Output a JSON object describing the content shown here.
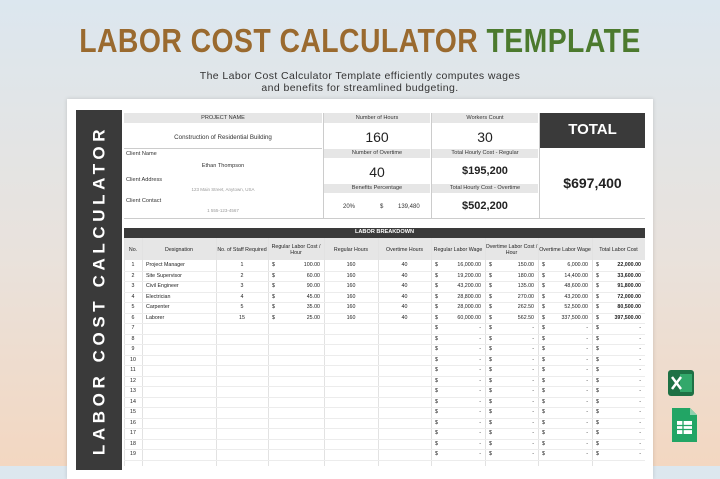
{
  "header": {
    "title_main": "LABOR COST CALCULATOR",
    "title_accent": "TEMPLATE",
    "subtitle_line1": "The Labor Cost Calculator Template efficiently computes wages",
    "subtitle_line2": "and benefits for streamlined budgeting."
  },
  "sheet": {
    "sidebar": "LABOR COST CALCULATOR",
    "info": {
      "project_name_label": "PROJECT NAME",
      "project_name": "Construction of Residential Building",
      "client_name_label": "Client Name",
      "client_name": "Ethan Thompson",
      "client_address_label": "Client Address",
      "client_address": "123 Main Street, Anytown, USA",
      "client_contact_label": "Client Contact",
      "client_contact": "1 555-123-4567",
      "hours_label": "Number of Hours",
      "hours": "160",
      "workers_label": "Workers Count",
      "workers": "30",
      "overtime_label": "Number of Overtime",
      "overtime": "40",
      "regular_cost_label": "Total Hourly Cost - Regular",
      "regular_cost": "$195,200",
      "benefits_label": "Benefits Percentage",
      "benefits_percent": "20%",
      "benefits_currency": "$",
      "benefits_amount": "139,480",
      "overtime_cost_label": "Total Hourly Cost - Overtime",
      "overtime_cost": "$502,200",
      "total_label": "TOTAL",
      "total": "$697,400"
    },
    "breakdown": {
      "title": "LABOR BREAKDOWN",
      "columns": [
        "No.",
        "Designation",
        "No. of Staff Required",
        "Regular Labor Cost / Hour",
        "Regular Hours",
        "Overtime Hours",
        "Regular Labor Wage",
        "Overtime Labor Cost / Hour",
        "Overtime Labor Wage",
        "Total Labor Cost"
      ],
      "rows": [
        {
          "no": "1",
          "designation": "Project Manager",
          "staff": "1",
          "regular_rate": {
            "currency": "$",
            "amount": "100.00"
          },
          "regular_hours": "160",
          "overtime_hours": "40",
          "regular_wage": {
            "currency": "$",
            "amount": "16,000.00"
          },
          "overtime_rate": {
            "currency": "$",
            "amount": "150.00"
          },
          "overtime_wage": {
            "currency": "$",
            "amount": "6,000.00"
          },
          "total": {
            "currency": "$",
            "amount": "22,000.00"
          }
        },
        {
          "no": "2",
          "designation": "Site Supervisor",
          "staff": "2",
          "regular_rate": {
            "currency": "$",
            "amount": "60.00"
          },
          "regular_hours": "160",
          "overtime_hours": "40",
          "regular_wage": {
            "currency": "$",
            "amount": "19,200.00"
          },
          "overtime_rate": {
            "currency": "$",
            "amount": "180.00"
          },
          "overtime_wage": {
            "currency": "$",
            "amount": "14,400.00"
          },
          "total": {
            "currency": "$",
            "amount": "33,600.00"
          }
        },
        {
          "no": "3",
          "designation": "Civil Engineer",
          "staff": "3",
          "regular_rate": {
            "currency": "$",
            "amount": "90.00"
          },
          "regular_hours": "160",
          "overtime_hours": "40",
          "regular_wage": {
            "currency": "$",
            "amount": "43,200.00"
          },
          "overtime_rate": {
            "currency": "$",
            "amount": "135.00"
          },
          "overtime_wage": {
            "currency": "$",
            "amount": "48,600.00"
          },
          "total": {
            "currency": "$",
            "amount": "91,800.00"
          }
        },
        {
          "no": "4",
          "designation": "Electrician",
          "staff": "4",
          "regular_rate": {
            "currency": "$",
            "amount": "45.00"
          },
          "regular_hours": "160",
          "overtime_hours": "40",
          "regular_wage": {
            "currency": "$",
            "amount": "28,800.00"
          },
          "overtime_rate": {
            "currency": "$",
            "amount": "270.00"
          },
          "overtime_wage": {
            "currency": "$",
            "amount": "43,200.00"
          },
          "total": {
            "currency": "$",
            "amount": "72,000.00"
          }
        },
        {
          "no": "5",
          "designation": "Carpenter",
          "staff": "5",
          "regular_rate": {
            "currency": "$",
            "amount": "35.00"
          },
          "regular_hours": "160",
          "overtime_hours": "40",
          "regular_wage": {
            "currency": "$",
            "amount": "28,000.00"
          },
          "overtime_rate": {
            "currency": "$",
            "amount": "262.50"
          },
          "overtime_wage": {
            "currency": "$",
            "amount": "52,500.00"
          },
          "total": {
            "currency": "$",
            "amount": "80,500.00"
          }
        },
        {
          "no": "6",
          "designation": "Laborer",
          "staff": "15",
          "regular_rate": {
            "currency": "$",
            "amount": "25.00"
          },
          "regular_hours": "160",
          "overtime_hours": "40",
          "regular_wage": {
            "currency": "$",
            "amount": "60,000.00"
          },
          "overtime_rate": {
            "currency": "$",
            "amount": "562.50"
          },
          "overtime_wage": {
            "currency": "$",
            "amount": "337,500.00"
          },
          "total": {
            "currency": "$",
            "amount": "397,500.00"
          }
        },
        {
          "no": "7",
          "regular_wage": {
            "currency": "$",
            "amount": "-"
          },
          "overtime_rate": {
            "currency": "$",
            "amount": "-"
          },
          "overtime_wage": {
            "currency": "$",
            "amount": "-"
          },
          "total": {
            "currency": "$",
            "amount": "-"
          }
        },
        {
          "no": "8",
          "regular_wage": {
            "currency": "$",
            "amount": "-"
          },
          "overtime_rate": {
            "currency": "$",
            "amount": "-"
          },
          "overtime_wage": {
            "currency": "$",
            "amount": "-"
          },
          "total": {
            "currency": "$",
            "amount": "-"
          }
        },
        {
          "no": "9",
          "regular_wage": {
            "currency": "$",
            "amount": "-"
          },
          "overtime_rate": {
            "currency": "$",
            "amount": "-"
          },
          "overtime_wage": {
            "currency": "$",
            "amount": "-"
          },
          "total": {
            "currency": "$",
            "amount": "-"
          }
        },
        {
          "no": "10",
          "regular_wage": {
            "currency": "$",
            "amount": "-"
          },
          "overtime_rate": {
            "currency": "$",
            "amount": "-"
          },
          "overtime_wage": {
            "currency": "$",
            "amount": "-"
          },
          "total": {
            "currency": "$",
            "amount": "-"
          }
        },
        {
          "no": "11",
          "regular_wage": {
            "currency": "$",
            "amount": "-"
          },
          "overtime_rate": {
            "currency": "$",
            "amount": "-"
          },
          "overtime_wage": {
            "currency": "$",
            "amount": "-"
          },
          "total": {
            "currency": "$",
            "amount": "-"
          }
        },
        {
          "no": "12",
          "regular_wage": {
            "currency": "$",
            "amount": "-"
          },
          "overtime_rate": {
            "currency": "$",
            "amount": "-"
          },
          "overtime_wage": {
            "currency": "$",
            "amount": "-"
          },
          "total": {
            "currency": "$",
            "amount": "-"
          }
        },
        {
          "no": "13",
          "regular_wage": {
            "currency": "$",
            "amount": "-"
          },
          "overtime_rate": {
            "currency": "$",
            "amount": "-"
          },
          "overtime_wage": {
            "currency": "$",
            "amount": "-"
          },
          "total": {
            "currency": "$",
            "amount": "-"
          }
        },
        {
          "no": "14",
          "regular_wage": {
            "currency": "$",
            "amount": "-"
          },
          "overtime_rate": {
            "currency": "$",
            "amount": "-"
          },
          "overtime_wage": {
            "currency": "$",
            "amount": "-"
          },
          "total": {
            "currency": "$",
            "amount": "-"
          }
        },
        {
          "no": "15",
          "regular_wage": {
            "currency": "$",
            "amount": "-"
          },
          "overtime_rate": {
            "currency": "$",
            "amount": "-"
          },
          "overtime_wage": {
            "currency": "$",
            "amount": "-"
          },
          "total": {
            "currency": "$",
            "amount": "-"
          }
        },
        {
          "no": "16",
          "regular_wage": {
            "currency": "$",
            "amount": "-"
          },
          "overtime_rate": {
            "currency": "$",
            "amount": "-"
          },
          "overtime_wage": {
            "currency": "$",
            "amount": "-"
          },
          "total": {
            "currency": "$",
            "amount": "-"
          }
        },
        {
          "no": "17",
          "regular_wage": {
            "currency": "$",
            "amount": "-"
          },
          "overtime_rate": {
            "currency": "$",
            "amount": "-"
          },
          "overtime_wage": {
            "currency": "$",
            "amount": "-"
          },
          "total": {
            "currency": "$",
            "amount": "-"
          }
        },
        {
          "no": "18",
          "regular_wage": {
            "currency": "$",
            "amount": "-"
          },
          "overtime_rate": {
            "currency": "$",
            "amount": "-"
          },
          "overtime_wage": {
            "currency": "$",
            "amount": "-"
          },
          "total": {
            "currency": "$",
            "amount": "-"
          }
        },
        {
          "no": "19",
          "regular_wage": {
            "currency": "$",
            "amount": "-"
          },
          "overtime_rate": {
            "currency": "$",
            "amount": "-"
          },
          "overtime_wage": {
            "currency": "$",
            "amount": "-"
          },
          "total": {
            "currency": "$",
            "amount": "-"
          }
        }
      ]
    }
  }
}
